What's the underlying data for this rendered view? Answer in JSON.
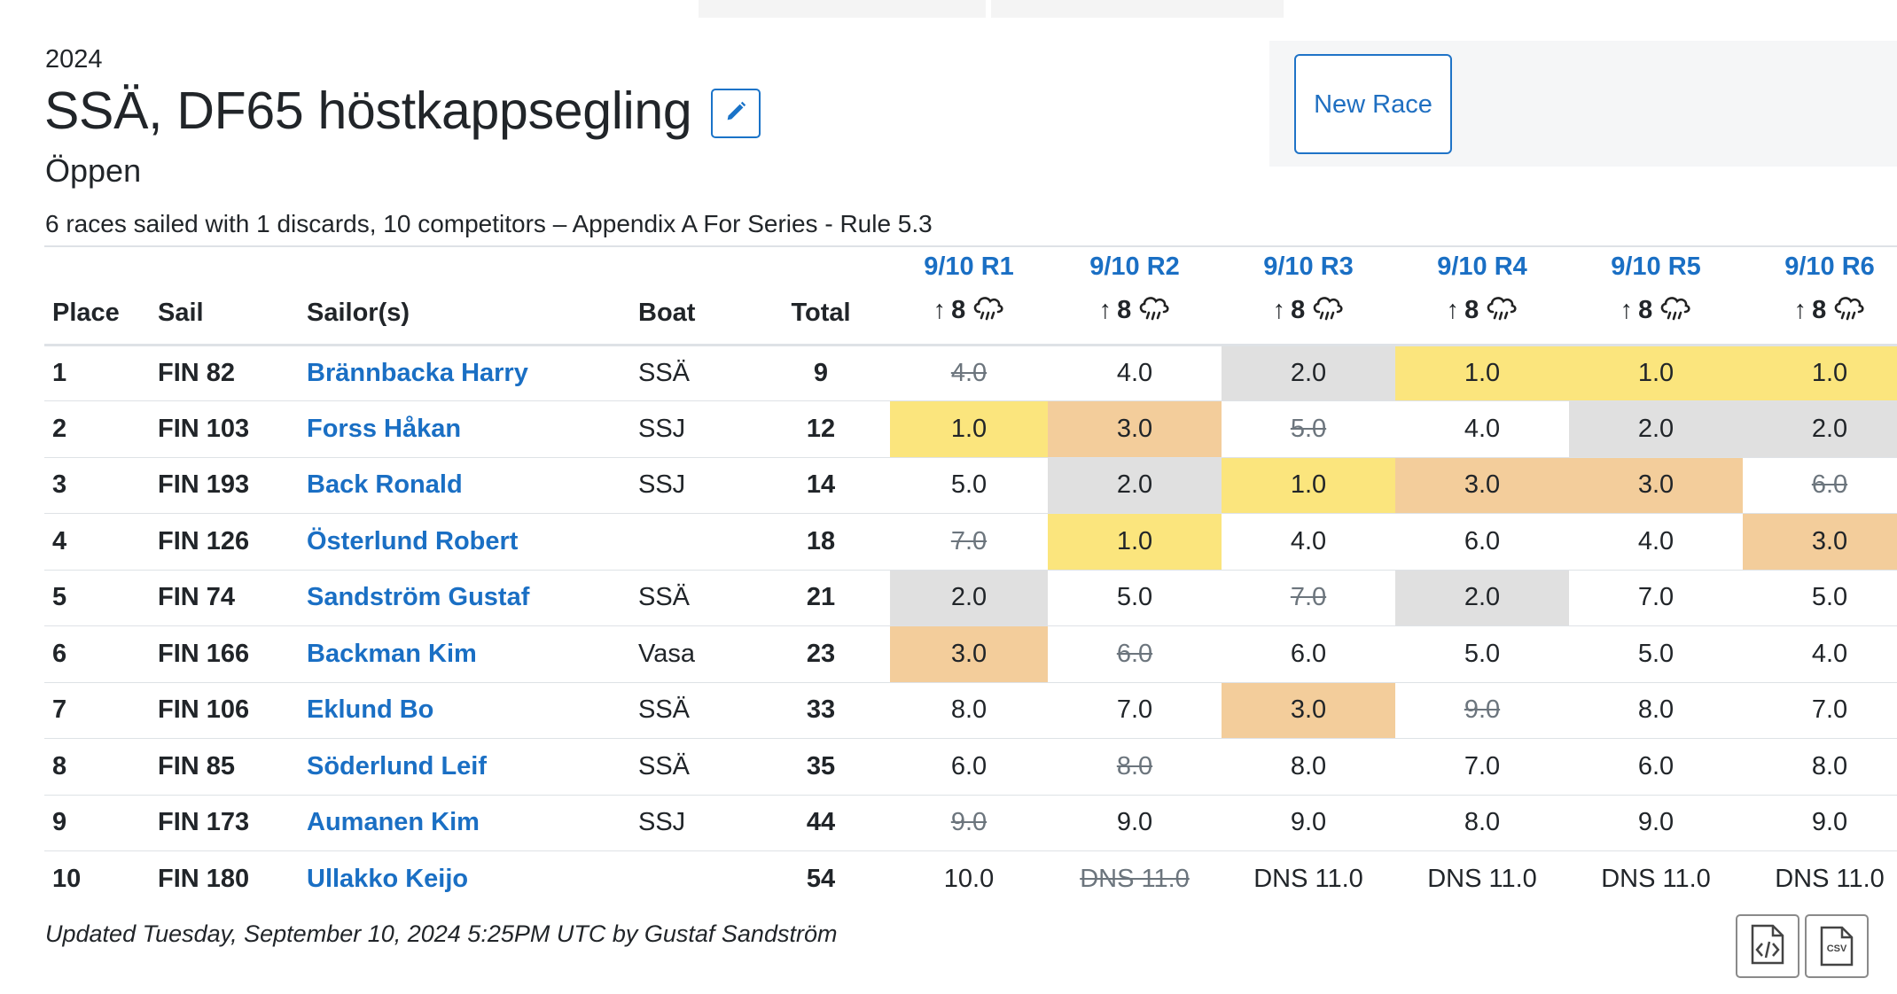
{
  "header": {
    "year": "2024",
    "title": "SSÄ, DF65 höstkappsegling",
    "division": "Öppen",
    "summary": "6 races sailed with 1 discards, 10 competitors – Appendix A For Series - Rule 5.3"
  },
  "actions": {
    "new_race": "New Race"
  },
  "colors": {
    "link": "#1a6fc4",
    "gold": "#fbe57d",
    "silver": "#e0e0e0",
    "bronze": "#f3cd9b"
  },
  "table": {
    "columns": {
      "place": "Place",
      "sail": "Sail",
      "sailors": "Sailor(s)",
      "boat": "Boat",
      "total": "Total"
    },
    "races": [
      {
        "label": "9/10 R1",
        "wind_arrow": "↑",
        "wind_speed": "8",
        "weather_icon": "cloud-rain-icon"
      },
      {
        "label": "9/10 R2",
        "wind_arrow": "↑",
        "wind_speed": "8",
        "weather_icon": "cloud-rain-icon"
      },
      {
        "label": "9/10 R3",
        "wind_arrow": "↑",
        "wind_speed": "8",
        "weather_icon": "cloud-rain-icon"
      },
      {
        "label": "9/10 R4",
        "wind_arrow": "↑",
        "wind_speed": "8",
        "weather_icon": "cloud-rain-icon"
      },
      {
        "label": "9/10 R5",
        "wind_arrow": "↑",
        "wind_speed": "8",
        "weather_icon": "cloud-rain-icon"
      },
      {
        "label": "9/10 R6",
        "wind_arrow": "↑",
        "wind_speed": "8",
        "weather_icon": "cloud-rain-icon"
      }
    ],
    "rows": [
      {
        "place": "1",
        "sail": "FIN 82",
        "sailor": "Brännbacka Harry",
        "boat": "SSÄ",
        "total": "9",
        "results": [
          {
            "v": "4.0",
            "d": true
          },
          {
            "v": "4.0"
          },
          {
            "v": "2.0",
            "m": "silver"
          },
          {
            "v": "1.0",
            "m": "gold"
          },
          {
            "v": "1.0",
            "m": "gold"
          },
          {
            "v": "1.0",
            "m": "gold"
          }
        ]
      },
      {
        "place": "2",
        "sail": "FIN 103",
        "sailor": "Forss Håkan",
        "boat": "SSJ",
        "total": "12",
        "results": [
          {
            "v": "1.0",
            "m": "gold"
          },
          {
            "v": "3.0",
            "m": "bronze"
          },
          {
            "v": "5.0",
            "d": true
          },
          {
            "v": "4.0"
          },
          {
            "v": "2.0",
            "m": "silver"
          },
          {
            "v": "2.0",
            "m": "silver"
          }
        ]
      },
      {
        "place": "3",
        "sail": "FIN 193",
        "sailor": "Back Ronald",
        "boat": "SSJ",
        "total": "14",
        "results": [
          {
            "v": "5.0"
          },
          {
            "v": "2.0",
            "m": "silver"
          },
          {
            "v": "1.0",
            "m": "gold"
          },
          {
            "v": "3.0",
            "m": "bronze"
          },
          {
            "v": "3.0",
            "m": "bronze"
          },
          {
            "v": "6.0",
            "d": true
          }
        ]
      },
      {
        "place": "4",
        "sail": "FIN 126",
        "sailor": "Österlund Robert",
        "boat": "",
        "total": "18",
        "results": [
          {
            "v": "7.0",
            "d": true
          },
          {
            "v": "1.0",
            "m": "gold"
          },
          {
            "v": "4.0"
          },
          {
            "v": "6.0"
          },
          {
            "v": "4.0"
          },
          {
            "v": "3.0",
            "m": "bronze"
          }
        ]
      },
      {
        "place": "5",
        "sail": "FIN 74",
        "sailor": "Sandström Gustaf",
        "boat": "SSÄ",
        "total": "21",
        "results": [
          {
            "v": "2.0",
            "m": "silver"
          },
          {
            "v": "5.0"
          },
          {
            "v": "7.0",
            "d": true
          },
          {
            "v": "2.0",
            "m": "silver"
          },
          {
            "v": "7.0"
          },
          {
            "v": "5.0"
          }
        ]
      },
      {
        "place": "6",
        "sail": "FIN 166",
        "sailor": "Backman Kim",
        "boat": "Vasa",
        "total": "23",
        "results": [
          {
            "v": "3.0",
            "m": "bronze"
          },
          {
            "v": "6.0",
            "d": true
          },
          {
            "v": "6.0"
          },
          {
            "v": "5.0"
          },
          {
            "v": "5.0"
          },
          {
            "v": "4.0"
          }
        ]
      },
      {
        "place": "7",
        "sail": "FIN 106",
        "sailor": "Eklund Bo",
        "boat": "SSÄ",
        "total": "33",
        "results": [
          {
            "v": "8.0"
          },
          {
            "v": "7.0"
          },
          {
            "v": "3.0",
            "m": "bronze"
          },
          {
            "v": "9.0",
            "d": true
          },
          {
            "v": "8.0"
          },
          {
            "v": "7.0"
          }
        ]
      },
      {
        "place": "8",
        "sail": "FIN 85",
        "sailor": "Söderlund Leif",
        "boat": "SSÄ",
        "total": "35",
        "results": [
          {
            "v": "6.0"
          },
          {
            "v": "8.0",
            "d": true
          },
          {
            "v": "8.0"
          },
          {
            "v": "7.0"
          },
          {
            "v": "6.0"
          },
          {
            "v": "8.0"
          }
        ]
      },
      {
        "place": "9",
        "sail": "FIN 173",
        "sailor": "Aumanen Kim",
        "boat": "SSJ",
        "total": "44",
        "results": [
          {
            "v": "9.0",
            "d": true
          },
          {
            "v": "9.0"
          },
          {
            "v": "9.0"
          },
          {
            "v": "8.0"
          },
          {
            "v": "9.0"
          },
          {
            "v": "9.0"
          }
        ]
      },
      {
        "place": "10",
        "sail": "FIN 180",
        "sailor": "Ullakko Keijo",
        "boat": "",
        "total": "54",
        "results": [
          {
            "v": "10.0"
          },
          {
            "v": "DNS 11.0",
            "d": true
          },
          {
            "v": "DNS 11.0"
          },
          {
            "v": "DNS 11.0"
          },
          {
            "v": "DNS 11.0"
          },
          {
            "v": "DNS 11.0"
          }
        ]
      }
    ]
  },
  "footer": {
    "updated": "Updated Tuesday, September 10, 2024 5:25PM UTC by Gustaf Sandström",
    "downloads": [
      {
        "icon": "html-file-icon"
      },
      {
        "icon": "csv-file-icon",
        "label": "CSV"
      }
    ]
  }
}
